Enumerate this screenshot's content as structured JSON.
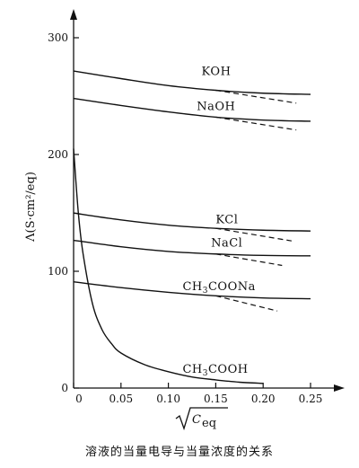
{
  "chart_data": {
    "type": "line",
    "title": "",
    "caption": "溶液的当量电导与当量浓度的关系",
    "xlabel": "√C_eq",
    "xlabel_main": "C",
    "xlabel_sub": "eq",
    "ylabel": "Λ(S·cm²/eq)",
    "xlim": [
      0,
      0.25
    ],
    "ylim": [
      0,
      300
    ],
    "x_ticks": [
      0,
      0.05,
      0.1,
      0.15,
      0.2,
      0.25
    ],
    "x_tick_labels": [
      "0",
      "0.05",
      "0.10",
      "0.15",
      "0.20",
      "0.25"
    ],
    "y_ticks": [
      0,
      100,
      200,
      300
    ],
    "y_tick_labels": [
      "0",
      "100",
      "200",
      "300"
    ],
    "grid": false,
    "series": [
      {
        "name": "KOH",
        "label_at": [
          0.135,
          268
        ],
        "x": [
          0,
          0.05,
          0.1,
          0.15,
          0.2,
          0.25
        ],
        "values": [
          271.5,
          265,
          259,
          255,
          252.5,
          251.5
        ],
        "limiting_x": [
          0.15,
          0.235
        ],
        "limiting_values": [
          255,
          244
        ]
      },
      {
        "name": "NaOH",
        "label_at": [
          0.13,
          238
        ],
        "x": [
          0,
          0.05,
          0.1,
          0.15,
          0.2,
          0.25
        ],
        "values": [
          248,
          242,
          236.5,
          232,
          229.5,
          228.5
        ],
        "limiting_x": [
          0.15,
          0.235
        ],
        "limiting_values": [
          232,
          221
        ]
      },
      {
        "name": "KCl",
        "label_at": [
          0.15,
          141
        ],
        "x": [
          0,
          0.05,
          0.1,
          0.15,
          0.2,
          0.25
        ],
        "values": [
          149.9,
          144,
          139.5,
          136.8,
          135.2,
          134.5
        ],
        "limiting_x": [
          0.15,
          0.23
        ],
        "limiting_values": [
          136.8,
          126
        ]
      },
      {
        "name": "NaCl",
        "label_at": [
          0.145,
          121
        ],
        "x": [
          0,
          0.05,
          0.1,
          0.15,
          0.2,
          0.25
        ],
        "values": [
          126.5,
          121,
          117,
          114.8,
          113.6,
          113.2
        ],
        "limiting_x": [
          0.15,
          0.22
        ],
        "limiting_values": [
          114.8,
          105
        ]
      },
      {
        "name": "CH3COONa",
        "name_parts": [
          "CH",
          "3",
          "COONa"
        ],
        "label_at": [
          0.115,
          84
        ],
        "x": [
          0,
          0.05,
          0.1,
          0.15,
          0.2,
          0.25
        ],
        "values": [
          91,
          86,
          82,
          79,
          77.2,
          76.5
        ],
        "limiting_x": [
          0.15,
          0.215
        ],
        "limiting_values": [
          79,
          66
        ]
      },
      {
        "name": "CH3COOH",
        "name_parts": [
          "CH",
          "3",
          "COOH"
        ],
        "label_at": [
          0.115,
          13
        ],
        "x": [
          0,
          0.005,
          0.01,
          0.02,
          0.03,
          0.04,
          0.05,
          0.075,
          0.1,
          0.125,
          0.15,
          0.175,
          0.2
        ],
        "values": [
          205,
          150,
          115,
          72,
          50,
          38,
          30,
          20,
          14,
          9.5,
          7,
          5,
          4
        ]
      }
    ]
  }
}
